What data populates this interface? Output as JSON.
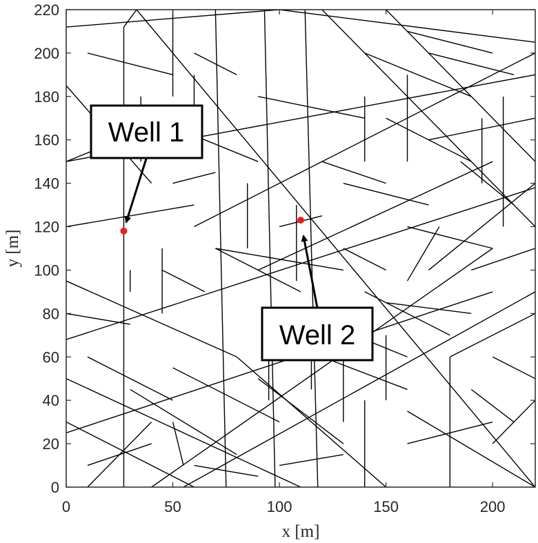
{
  "chart_data": {
    "type": "scatter",
    "title": "",
    "xlabel": "x [m]",
    "ylabel": "y [m]",
    "xlim": [
      0,
      220
    ],
    "ylim": [
      0,
      220
    ],
    "xticks": [
      0,
      50,
      100,
      150,
      200
    ],
    "yticks": [
      0,
      20,
      40,
      60,
      80,
      100,
      120,
      140,
      160,
      180,
      200,
      220
    ],
    "grid": false,
    "legend": "none",
    "colors": {
      "axis": "#262626",
      "fracture": "#000000",
      "well": "#e8201c"
    },
    "wells": [
      {
        "name": "Well 1",
        "x": 27,
        "y": 118
      },
      {
        "name": "Well 2",
        "x": 110,
        "y": 123
      }
    ],
    "fractures": [
      [
        27,
        0,
        27,
        212
      ],
      [
        27,
        212,
        33,
        220
      ],
      [
        75,
        0,
        70,
        220
      ],
      [
        98,
        0,
        93,
        220
      ],
      [
        118,
        0,
        112,
        220
      ],
      [
        0,
        68,
        220,
        138
      ],
      [
        0,
        150,
        220,
        190
      ],
      [
        33,
        220,
        220,
        0
      ],
      [
        0,
        212,
        100,
        220
      ],
      [
        100,
        220,
        220,
        205
      ],
      [
        0,
        95,
        80,
        60
      ],
      [
        80,
        60,
        150,
        0
      ],
      [
        55,
        0,
        220,
        90
      ],
      [
        0,
        25,
        200,
        90
      ],
      [
        40,
        0,
        200,
        110
      ],
      [
        60,
        120,
        220,
        200
      ],
      [
        90,
        100,
        200,
        150
      ],
      [
        0,
        185,
        40,
        140
      ],
      [
        150,
        220,
        220,
        150
      ],
      [
        120,
        220,
        220,
        120
      ],
      [
        0,
        30,
        60,
        0
      ],
      [
        0,
        50,
        110,
        0
      ],
      [
        10,
        0,
        40,
        30
      ],
      [
        50,
        55,
        100,
        30
      ],
      [
        70,
        110,
        110,
        90
      ],
      [
        70,
        110,
        130,
        100
      ],
      [
        108,
        95,
        108,
        130
      ],
      [
        120,
        60,
        160,
        45
      ],
      [
        140,
        0,
        140,
        40
      ],
      [
        160,
        35,
        220,
        0
      ],
      [
        170,
        100,
        220,
        140
      ],
      [
        180,
        60,
        220,
        80
      ],
      [
        180,
        0,
        180,
        60
      ],
      [
        200,
        20,
        220,
        40
      ],
      [
        0,
        120,
        60,
        130
      ],
      [
        0,
        80,
        30,
        75
      ],
      [
        10,
        200,
        50,
        190
      ],
      [
        40,
        170,
        90,
        150
      ],
      [
        140,
        200,
        190,
        180
      ],
      [
        150,
        170,
        190,
        150
      ],
      [
        50,
        220,
        50,
        180
      ],
      [
        60,
        200,
        80,
        190
      ],
      [
        90,
        180,
        140,
        170
      ],
      [
        130,
        140,
        170,
        130
      ],
      [
        160,
        120,
        200,
        110
      ],
      [
        190,
        100,
        220,
        110
      ],
      [
        200,
        60,
        220,
        50
      ],
      [
        10,
        60,
        50,
        40
      ],
      [
        30,
        45,
        80,
        15
      ],
      [
        90,
        50,
        130,
        20
      ],
      [
        110,
        80,
        160,
        60
      ],
      [
        140,
        90,
        180,
        70
      ],
      [
        160,
        210,
        200,
        200
      ],
      [
        170,
        160,
        220,
        170
      ],
      [
        0,
        150,
        25,
        160
      ],
      [
        35,
        150,
        35,
        180
      ],
      [
        140,
        150,
        140,
        180
      ],
      [
        160,
        150,
        160,
        190
      ],
      [
        195,
        140,
        195,
        170
      ],
      [
        205,
        120,
        205,
        180
      ],
      [
        50,
        140,
        70,
        145
      ],
      [
        60,
        160,
        60,
        190
      ],
      [
        85,
        140,
        85,
        110
      ],
      [
        120,
        150,
        150,
        140
      ],
      [
        170,
        200,
        210,
        190
      ],
      [
        30,
        100,
        30,
        90
      ],
      [
        45,
        80,
        45,
        110
      ],
      [
        100,
        120,
        120,
        125
      ],
      [
        130,
        110,
        150,
        100
      ],
      [
        150,
        85,
        190,
        80
      ],
      [
        130,
        60,
        130,
        30
      ],
      [
        150,
        70,
        150,
        40
      ],
      [
        160,
        20,
        200,
        30
      ],
      [
        190,
        45,
        210,
        30
      ],
      [
        10,
        10,
        40,
        20
      ],
      [
        60,
        10,
        90,
        5
      ],
      [
        100,
        10,
        130,
        15
      ],
      [
        45,
        100,
        65,
        90
      ],
      [
        50,
        30,
        55,
        10
      ],
      [
        95,
        70,
        95,
        40
      ],
      [
        115,
        45,
        115,
        65
      ],
      [
        160,
        95,
        175,
        120
      ],
      [
        185,
        150,
        210,
        130
      ]
    ]
  },
  "callouts": [
    {
      "label": "Well 1"
    },
    {
      "label": "Well 2"
    }
  ]
}
